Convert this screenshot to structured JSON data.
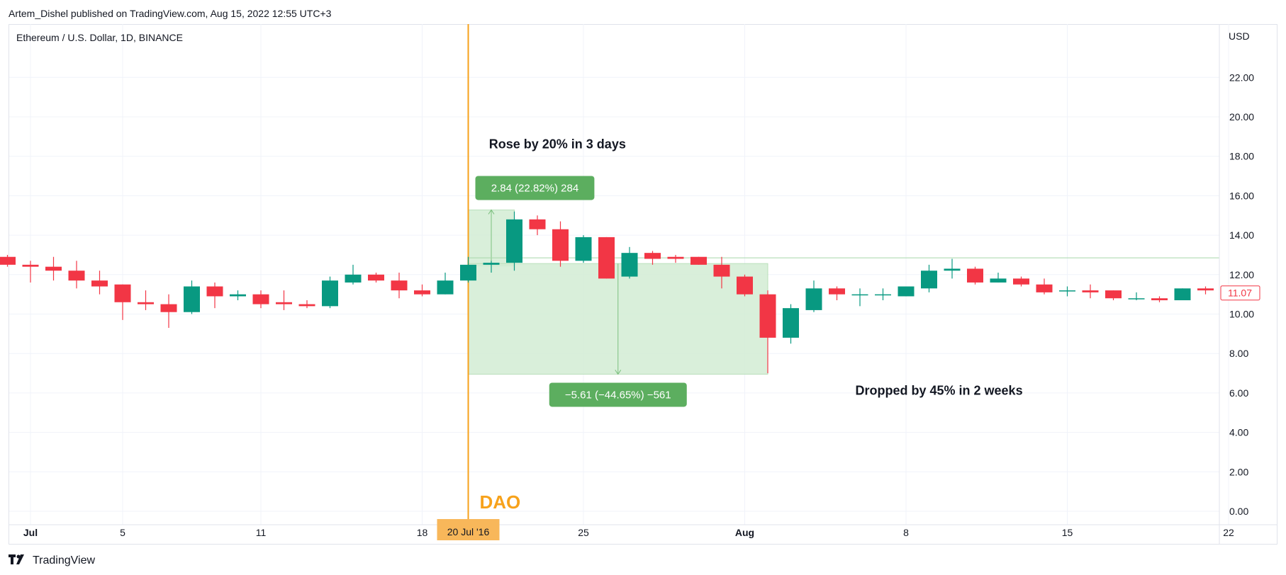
{
  "header": {
    "publisher_line": "Artem_Dishel published on TradingView.com, Aug 15, 2022 12:55 UTC+3"
  },
  "footer": {
    "logo_text": "TradingView",
    "logo_icon": "tradingview-logo-icon"
  },
  "colors": {
    "up": "#089981",
    "down": "#f23645",
    "event_line": "#f7a21b",
    "measure_fill": "#d2ecd3",
    "measure_label_bg": "#5cae5f",
    "grid": "#f0f3fa",
    "price_tag_border": "#f23645"
  },
  "chart_data": {
    "type": "candlestick",
    "symbol_title": "Ethereum / U.S. Dollar, 1D, BINANCE",
    "currency_label": "USD",
    "ylim": [
      0,
      24
    ],
    "y_ticks": [
      "0.00",
      "2.00",
      "4.00",
      "6.00",
      "8.00",
      "10.00",
      "12.00",
      "14.00",
      "16.00",
      "18.00",
      "20.00",
      "22.00"
    ],
    "x_tick_labels": [
      {
        "label": "Jul",
        "day": 0
      },
      {
        "label": "5",
        "day": 4
      },
      {
        "label": "11",
        "day": 10
      },
      {
        "label": "18",
        "day": 17
      },
      {
        "label": "25",
        "day": 24
      },
      {
        "label": "Aug",
        "day": 31
      },
      {
        "label": "8",
        "day": 38
      },
      {
        "label": "15",
        "day": 45
      },
      {
        "label": "22",
        "day": 52
      }
    ],
    "highlighted_date": {
      "label": "20 Jul '16",
      "day": 19
    },
    "last_price": "11.07",
    "candles": [
      {
        "day": -1,
        "o": 12.9,
        "h": 13.0,
        "l": 12.4,
        "c": 12.5
      },
      {
        "day": 0,
        "o": 12.5,
        "h": 12.7,
        "l": 11.6,
        "c": 12.4
      },
      {
        "day": 1,
        "o": 12.4,
        "h": 12.9,
        "l": 11.7,
        "c": 12.2
      },
      {
        "day": 2,
        "o": 12.2,
        "h": 12.7,
        "l": 11.3,
        "c": 11.7
      },
      {
        "day": 3,
        "o": 11.7,
        "h": 12.2,
        "l": 11.0,
        "c": 11.4
      },
      {
        "day": 4,
        "o": 11.5,
        "h": 11.5,
        "l": 9.7,
        "c": 10.6
      },
      {
        "day": 5,
        "o": 10.6,
        "h": 11.2,
        "l": 10.2,
        "c": 10.5
      },
      {
        "day": 6,
        "o": 10.5,
        "h": 11.0,
        "l": 9.3,
        "c": 10.1
      },
      {
        "day": 7,
        "o": 10.1,
        "h": 11.7,
        "l": 10.0,
        "c": 11.4
      },
      {
        "day": 8,
        "o": 11.4,
        "h": 11.6,
        "l": 10.3,
        "c": 10.9
      },
      {
        "day": 9,
        "o": 10.9,
        "h": 11.2,
        "l": 10.7,
        "c": 11.0
      },
      {
        "day": 10,
        "o": 11.0,
        "h": 11.2,
        "l": 10.3,
        "c": 10.5
      },
      {
        "day": 11,
        "o": 10.6,
        "h": 11.2,
        "l": 10.2,
        "c": 10.5
      },
      {
        "day": 12,
        "o": 10.5,
        "h": 10.7,
        "l": 10.3,
        "c": 10.4
      },
      {
        "day": 13,
        "o": 10.4,
        "h": 11.9,
        "l": 10.3,
        "c": 11.7
      },
      {
        "day": 14,
        "o": 11.6,
        "h": 12.5,
        "l": 11.5,
        "c": 12.0
      },
      {
        "day": 15,
        "o": 12.0,
        "h": 12.1,
        "l": 11.6,
        "c": 11.7
      },
      {
        "day": 16,
        "o": 11.7,
        "h": 12.1,
        "l": 10.8,
        "c": 11.2
      },
      {
        "day": 17,
        "o": 11.2,
        "h": 11.5,
        "l": 10.9,
        "c": 11.0
      },
      {
        "day": 18,
        "o": 11.0,
        "h": 12.1,
        "l": 11.0,
        "c": 11.7
      },
      {
        "day": 19,
        "o": 11.7,
        "h": 12.9,
        "l": 11.6,
        "c": 12.5
      },
      {
        "day": 20,
        "o": 12.5,
        "h": 12.7,
        "l": 12.1,
        "c": 12.6
      },
      {
        "day": 21,
        "o": 12.6,
        "h": 15.2,
        "l": 12.2,
        "c": 14.8
      },
      {
        "day": 22,
        "o": 14.8,
        "h": 15.0,
        "l": 14.0,
        "c": 14.3
      },
      {
        "day": 23,
        "o": 14.3,
        "h": 14.7,
        "l": 12.4,
        "c": 12.7
      },
      {
        "day": 24,
        "o": 12.7,
        "h": 14.0,
        "l": 12.6,
        "c": 13.9
      },
      {
        "day": 25,
        "o": 13.9,
        "h": 13.9,
        "l": 11.8,
        "c": 11.8
      },
      {
        "day": 26,
        "o": 11.9,
        "h": 13.4,
        "l": 11.8,
        "c": 13.1
      },
      {
        "day": 27,
        "o": 13.1,
        "h": 13.2,
        "l": 12.5,
        "c": 12.8
      },
      {
        "day": 28,
        "o": 12.9,
        "h": 13.0,
        "l": 12.6,
        "c": 12.8
      },
      {
        "day": 29,
        "o": 12.9,
        "h": 12.9,
        "l": 12.5,
        "c": 12.5
      },
      {
        "day": 30,
        "o": 12.5,
        "h": 12.9,
        "l": 11.3,
        "c": 11.9
      },
      {
        "day": 31,
        "o": 11.9,
        "h": 12.0,
        "l": 10.9,
        "c": 11.0
      },
      {
        "day": 32,
        "o": 11.0,
        "h": 11.2,
        "l": 7.0,
        "c": 8.8
      },
      {
        "day": 33,
        "o": 8.8,
        "h": 10.5,
        "l": 8.5,
        "c": 10.3
      },
      {
        "day": 34,
        "o": 10.2,
        "h": 11.7,
        "l": 10.1,
        "c": 11.3
      },
      {
        "day": 35,
        "o": 11.3,
        "h": 11.4,
        "l": 10.7,
        "c": 11.0
      },
      {
        "day": 36,
        "o": 11.0,
        "h": 11.3,
        "l": 10.4,
        "c": 11.0
      },
      {
        "day": 37,
        "o": 11.0,
        "h": 11.3,
        "l": 10.7,
        "c": 11.0
      },
      {
        "day": 38,
        "o": 10.9,
        "h": 11.4,
        "l": 10.9,
        "c": 11.4
      },
      {
        "day": 39,
        "o": 11.3,
        "h": 12.5,
        "l": 11.1,
        "c": 12.2
      },
      {
        "day": 40,
        "o": 12.2,
        "h": 12.8,
        "l": 11.8,
        "c": 12.3
      },
      {
        "day": 41,
        "o": 12.3,
        "h": 12.4,
        "l": 11.5,
        "c": 11.6
      },
      {
        "day": 42,
        "o": 11.6,
        "h": 12.1,
        "l": 11.6,
        "c": 11.8
      },
      {
        "day": 43,
        "o": 11.8,
        "h": 11.9,
        "l": 11.4,
        "c": 11.5
      },
      {
        "day": 44,
        "o": 11.5,
        "h": 11.8,
        "l": 11.0,
        "c": 11.1
      },
      {
        "day": 45,
        "o": 11.2,
        "h": 11.4,
        "l": 10.9,
        "c": 11.2
      },
      {
        "day": 46,
        "o": 11.2,
        "h": 11.5,
        "l": 10.8,
        "c": 11.1
      },
      {
        "day": 47,
        "o": 11.2,
        "h": 11.2,
        "l": 10.7,
        "c": 10.8
      },
      {
        "day": 48,
        "o": 10.8,
        "h": 11.1,
        "l": 10.7,
        "c": 10.8
      },
      {
        "day": 49,
        "o": 10.8,
        "h": 10.9,
        "l": 10.6,
        "c": 10.7
      },
      {
        "day": 50,
        "o": 10.7,
        "h": 11.3,
        "l": 10.7,
        "c": 11.3
      },
      {
        "day": 51,
        "o": 11.3,
        "h": 11.4,
        "l": 11.0,
        "c": 11.2
      },
      {
        "day": 52,
        "o": 11.2,
        "h": 11.3,
        "l": 11.0,
        "c": 11.07
      }
    ],
    "event_marker": {
      "label": "DAO",
      "day": 19
    },
    "measurements": [
      {
        "name": "rise",
        "day_from": 19,
        "day_to": 21,
        "from_price": 12.44,
        "to_price": 15.28,
        "label": "2.84 (22.82%) 284"
      },
      {
        "name": "drop",
        "day_from": 19,
        "day_to": 32,
        "from_price": 12.56,
        "to_price": 6.95,
        "label": "−5.61 (−44.65%) −561"
      }
    ],
    "reference_line_price": 12.85,
    "annotations": [
      {
        "name": "rise-note",
        "text": "Rose by 20% in 3 days",
        "day": 19.9,
        "price": 18.4
      },
      {
        "name": "drop-note",
        "text": "Dropped by 45% in 2 weeks",
        "day": 35.8,
        "price": 5.9
      }
    ]
  }
}
